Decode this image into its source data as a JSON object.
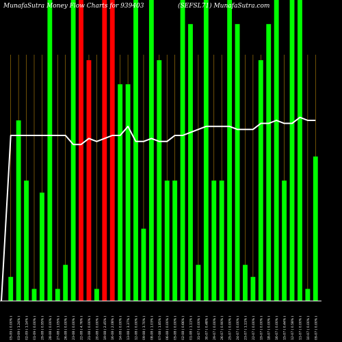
{
  "header": {
    "left": "MunafaSutra Money Flow Charts for 939403",
    "right": "(SEFSL71) MunafaSutra.com"
  },
  "colors": {
    "background": "#000000",
    "up": "#00ff00",
    "down": "#ff0000",
    "price_line": "#ffffff",
    "gridline": "#b8860b",
    "axis": "#ffffff"
  },
  "chart_data": {
    "type": "bar",
    "title": "MunafaSutra Money Flow Charts for 939403",
    "subtitle": "(SEFSL71) MunafaSutra.com",
    "ylim": [
      0,
      100
    ],
    "categories": [
      "05-09 ( 0.00% )",
      "03-09 ( 1.24% )",
      "02-09 ( 1.14% )",
      "01-09 ( 0.00% )",
      "29-08 ( 0.95% )",
      "28-08 ( 0.00% )",
      "27-08 ( 1.05% )",
      "26-08 ( 0.00% )",
      "23-08 ( 0.00% )",
      "22-08 ( 4.76% )",
      "21-08 ( 0.00% )",
      "20-08 ( 0.00% )",
      "19-08 ( 2.45% )",
      "16-08 ( 2.08% )",
      "14-08 ( 0.00% )",
      "13-08 ( 3.37% )",
      "12-08 ( 0.00% )",
      "09-08 ( 3.70% )",
      "08-08 ( 1.03% )",
      "07-08 ( 1.85% )",
      "06-08 ( 0.00% )",
      "05-08 ( 0.00% )",
      "02-08 ( 0.66% )",
      "01-08 ( 1.11% )",
      "31-07 ( 0.00% )",
      "30-07 ( 0.48% )",
      "29-07 ( 0.00% )",
      "26-07 ( 0.90% )",
      "25-07 ( 0.00% )",
      "24-07 ( 0.00% )",
      "23-07 ( 1.11% )",
      "22-07 ( 0.00% )",
      "19-07 ( 0.00% )",
      "18-07 ( 0.00% )",
      "16-07 ( 0.00% )",
      "15-07 ( 0.44% )",
      "12-07 ( 0.58% )",
      "11-07 ( 0.00% )",
      "10-07 ( 0.00% )",
      "09-07 ( 0.00% )"
    ],
    "bar_colors": [
      "green",
      "green",
      "green",
      "green",
      "green",
      "green",
      "green",
      "green",
      "green",
      "red",
      "red",
      "green",
      "red",
      "red",
      "green",
      "green",
      "green",
      "green",
      "green",
      "green",
      "green",
      "green",
      "green",
      "green",
      "green",
      "green",
      "green",
      "green",
      "green",
      "green",
      "green",
      "green",
      "green",
      "green",
      "green",
      "green",
      "green",
      "green",
      "green",
      "green"
    ],
    "values": [
      8,
      60,
      40,
      4,
      36,
      100,
      4,
      12,
      100,
      100,
      80,
      4,
      100,
      100,
      72,
      72,
      100,
      24,
      100,
      80,
      40,
      40,
      100,
      92,
      12,
      100,
      40,
      40,
      100,
      92,
      12,
      8,
      80,
      92,
      100,
      40,
      100,
      100,
      4,
      48
    ],
    "price_line": [
      55,
      55,
      55,
      55,
      55,
      55,
      55,
      55,
      52,
      52,
      54,
      53,
      54,
      55,
      55,
      58,
      53,
      53,
      54,
      53,
      53,
      55,
      55,
      56,
      57,
      58,
      58,
      58,
      58,
      57,
      57,
      57,
      59,
      59,
      60,
      59,
      59,
      61,
      60,
      60
    ],
    "grid": true
  }
}
